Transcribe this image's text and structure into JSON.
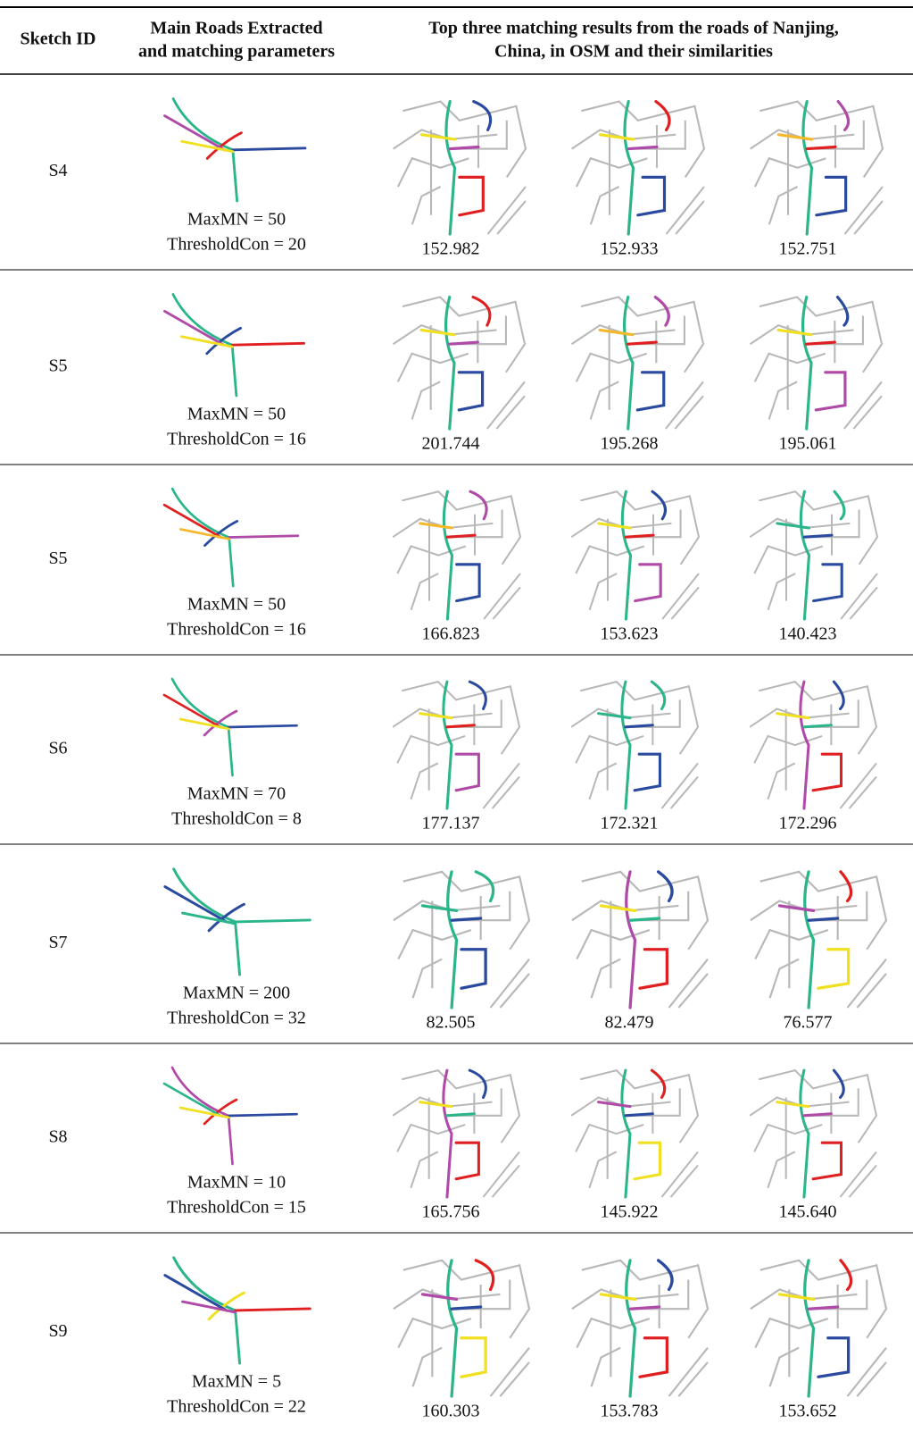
{
  "table": {
    "header": [
      [
        "Sketch ID"
      ],
      [
        "Main Roads Extracted",
        "and matching parameters"
      ],
      [
        "Top three matching results from the roads of Nanjing,",
        "China, in OSM and their similarities"
      ]
    ],
    "rows": [
      {
        "sketch_id": "S4",
        "params": [
          "MaxMN = 50",
          "ThresholdCon = 20"
        ],
        "scores": [
          "152.982",
          "152.933",
          "152.751"
        ]
      },
      {
        "sketch_id": "S5",
        "params": [
          "MaxMN = 50",
          "ThresholdCon = 16"
        ],
        "scores": [
          "201.744",
          "195.268",
          "195.061"
        ]
      },
      {
        "sketch_id": "S5",
        "params": [
          "MaxMN = 50",
          "ThresholdCon = 16"
        ],
        "scores": [
          "166.823",
          "153.623",
          "140.423"
        ]
      },
      {
        "sketch_id": "S6",
        "params": [
          "MaxMN = 70",
          "ThresholdCon = 8"
        ],
        "scores": [
          "177.137",
          "172.321",
          "172.296"
        ]
      },
      {
        "sketch_id": "S7",
        "params": [
          "MaxMN = 200",
          "ThresholdCon = 32"
        ],
        "scores": [
          "82.505",
          "82.479",
          "76.577"
        ]
      },
      {
        "sketch_id": "S8",
        "params": [
          "MaxMN = 10",
          "ThresholdCon = 15"
        ],
        "scores": [
          "165.756",
          "145.922",
          "145.640"
        ]
      },
      {
        "sketch_id": "S9",
        "params": [
          "MaxMN = 5",
          "ThresholdCon = 22"
        ],
        "scores": [
          "160.303",
          "153.783",
          "153.652"
        ]
      }
    ]
  }
}
